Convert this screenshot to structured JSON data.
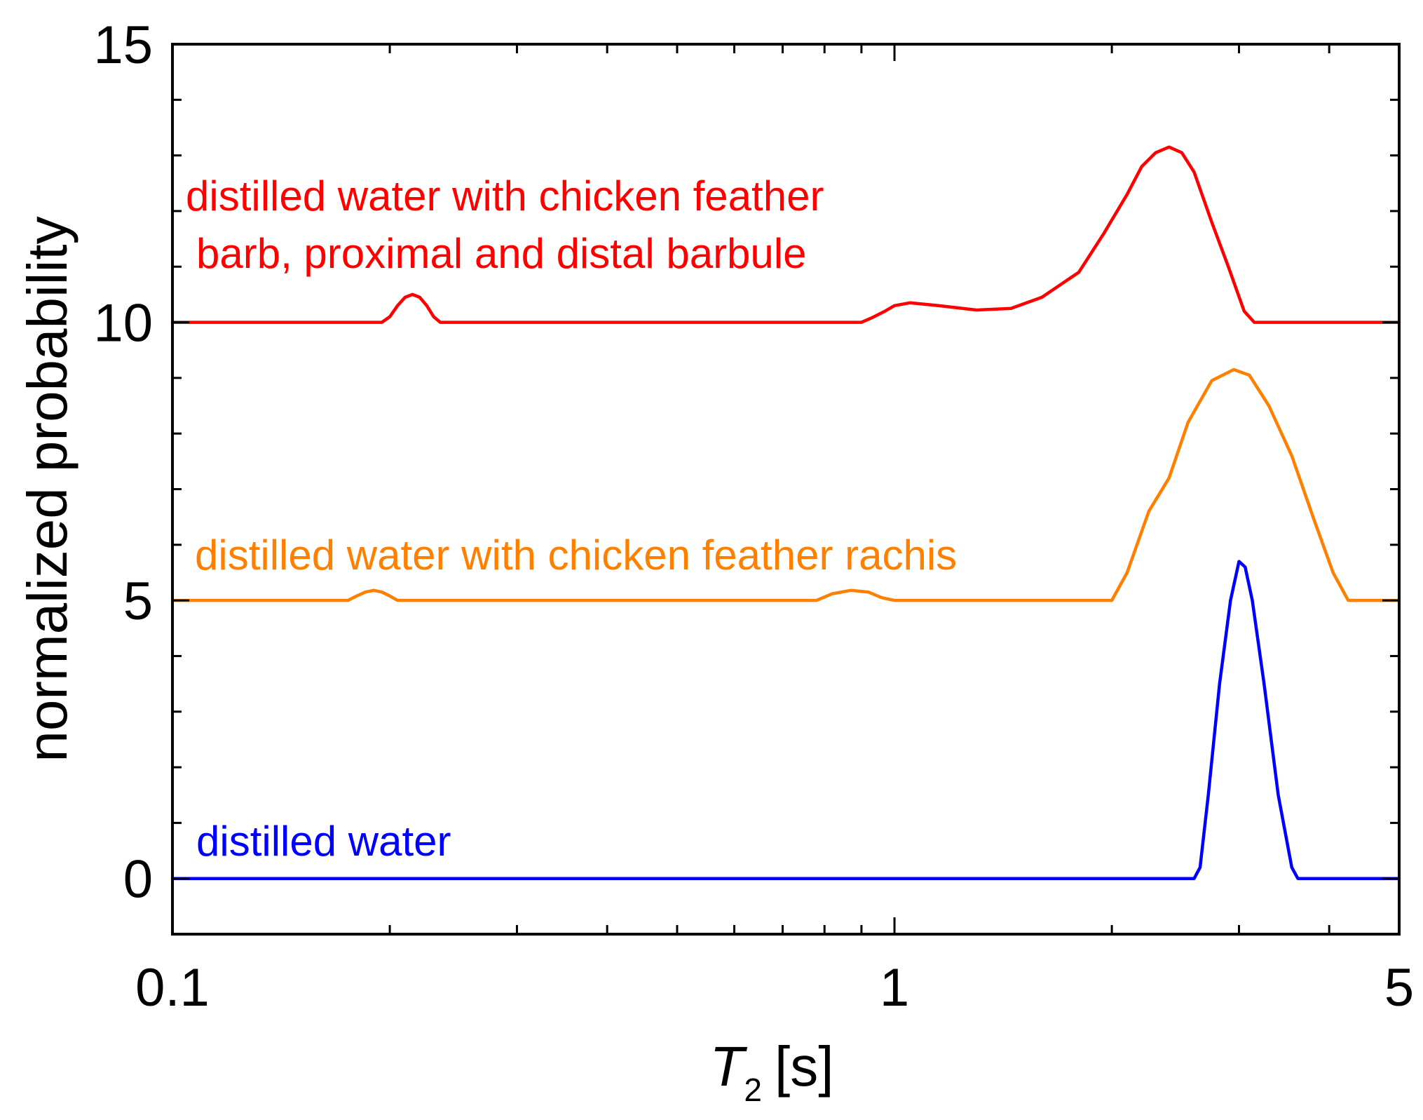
{
  "chart_data": {
    "type": "line",
    "xlabel": {
      "main": "T",
      "sub": "2",
      "unit": "[s]"
    },
    "ylabel": "normalized probability",
    "xscale": "log",
    "xlim": [
      0.1,
      5
    ],
    "ylim": [
      -1,
      15
    ],
    "xticks_major": [
      {
        "value": 0.1,
        "label": "0.1"
      },
      {
        "value": 1,
        "label": "1"
      },
      {
        "value": 5,
        "label": "5"
      }
    ],
    "xticks_minor": [
      0.2,
      0.3,
      0.4,
      0.5,
      0.6,
      0.7,
      0.8,
      0.9,
      2,
      3,
      4
    ],
    "yticks_major": [
      {
        "value": 0,
        "label": "0"
      },
      {
        "value": 5,
        "label": "5"
      },
      {
        "value": 10,
        "label": "10"
      },
      {
        "value": 15,
        "label": "15"
      }
    ],
    "yticks_minor": [
      1,
      2,
      3,
      4,
      6,
      7,
      8,
      9,
      11,
      12,
      13,
      14
    ],
    "grid": false,
    "legend": "none",
    "series": [
      {
        "name_lines": [
          "distilled water with chicken feather",
          "barb, proximal and distal barbule"
        ],
        "color": "#ff0000",
        "points": [
          [
            0.1,
            10
          ],
          [
            0.195,
            10
          ],
          [
            0.2,
            10.1
          ],
          [
            0.205,
            10.3
          ],
          [
            0.21,
            10.45
          ],
          [
            0.215,
            10.5
          ],
          [
            0.22,
            10.45
          ],
          [
            0.225,
            10.3
          ],
          [
            0.23,
            10.1
          ],
          [
            0.235,
            10
          ],
          [
            0.9,
            10
          ],
          [
            0.93,
            10.08
          ],
          [
            0.97,
            10.2
          ],
          [
            1.0,
            10.3
          ],
          [
            1.05,
            10.35
          ],
          [
            1.15,
            10.3
          ],
          [
            1.3,
            10.22
          ],
          [
            1.45,
            10.25
          ],
          [
            1.6,
            10.45
          ],
          [
            1.8,
            10.9
          ],
          [
            1.95,
            11.6
          ],
          [
            2.1,
            12.3
          ],
          [
            2.2,
            12.8
          ],
          [
            2.3,
            13.05
          ],
          [
            2.4,
            13.15
          ],
          [
            2.5,
            13.05
          ],
          [
            2.6,
            12.7
          ],
          [
            2.75,
            11.8
          ],
          [
            2.9,
            11.0
          ],
          [
            3.05,
            10.2
          ],
          [
            3.15,
            10
          ],
          [
            5,
            10
          ]
        ]
      },
      {
        "name_lines": [
          "distilled water with chicken feather rachis"
        ],
        "color": "#ff8000",
        "points": [
          [
            0.1,
            5
          ],
          [
            0.175,
            5
          ],
          [
            0.18,
            5.08
          ],
          [
            0.185,
            5.15
          ],
          [
            0.19,
            5.18
          ],
          [
            0.195,
            5.15
          ],
          [
            0.2,
            5.08
          ],
          [
            0.205,
            5
          ],
          [
            0.78,
            5
          ],
          [
            0.82,
            5.12
          ],
          [
            0.87,
            5.18
          ],
          [
            0.92,
            5.15
          ],
          [
            0.96,
            5.05
          ],
          [
            1.0,
            5
          ],
          [
            2.0,
            5
          ],
          [
            2.1,
            5.5
          ],
          [
            2.25,
            6.6
          ],
          [
            2.4,
            7.2
          ],
          [
            2.55,
            8.2
          ],
          [
            2.75,
            8.95
          ],
          [
            2.95,
            9.15
          ],
          [
            3.1,
            9.05
          ],
          [
            3.3,
            8.5
          ],
          [
            3.55,
            7.6
          ],
          [
            3.8,
            6.5
          ],
          [
            4.05,
            5.5
          ],
          [
            4.25,
            5
          ],
          [
            5,
            5
          ]
        ]
      },
      {
        "name_lines": [
          "distilled water"
        ],
        "color": "#0000ff",
        "points": [
          [
            0.1,
            0
          ],
          [
            2.6,
            0
          ],
          [
            2.65,
            0.2
          ],
          [
            2.72,
            1.5
          ],
          [
            2.82,
            3.5
          ],
          [
            2.92,
            5.0
          ],
          [
            3.0,
            5.7
          ],
          [
            3.06,
            5.6
          ],
          [
            3.13,
            5.0
          ],
          [
            3.25,
            3.5
          ],
          [
            3.4,
            1.5
          ],
          [
            3.55,
            0.2
          ],
          [
            3.62,
            0
          ],
          [
            5,
            0
          ]
        ]
      }
    ]
  }
}
